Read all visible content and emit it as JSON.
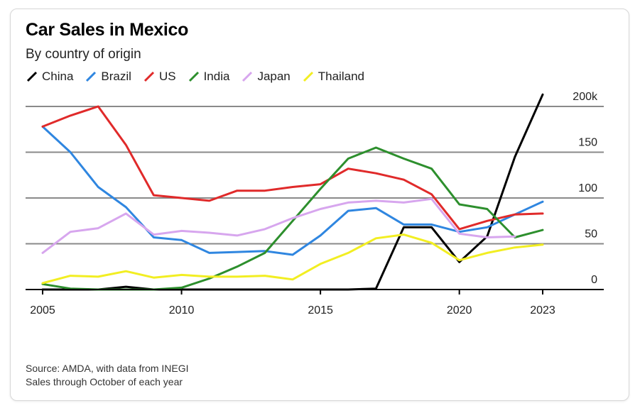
{
  "title": "Car Sales in Mexico",
  "subtitle": "By country of origin",
  "source_lines": [
    "Source: AMDA, with data from INEGI",
    "Sales through October of each year"
  ],
  "colors": {
    "China": "#000000",
    "Brazil": "#2f86e0",
    "US": "#e02a2a",
    "India": "#2d8f2d",
    "Japan": "#d7a6ee",
    "Thailand": "#f2ee22"
  },
  "chart_data": {
    "type": "line",
    "x": [
      2005,
      2006,
      2007,
      2008,
      2009,
      2010,
      2011,
      2012,
      2013,
      2014,
      2015,
      2016,
      2017,
      2018,
      2019,
      2020,
      2021,
      2022,
      2023
    ],
    "series": [
      {
        "name": "China",
        "values": [
          0,
          0,
          0,
          3,
          0,
          0,
          0,
          0,
          0,
          0,
          0,
          0,
          1,
          68,
          68,
          30,
          58,
          145,
          213
        ]
      },
      {
        "name": "Brazil",
        "values": [
          178,
          150,
          112,
          90,
          57,
          54,
          40,
          41,
          42,
          38,
          59,
          86,
          89,
          71,
          71,
          63,
          68,
          82,
          96
        ]
      },
      {
        "name": "US",
        "values": [
          178,
          190,
          200,
          158,
          103,
          100,
          97,
          108,
          108,
          112,
          115,
          132,
          127,
          120,
          104,
          66,
          75,
          82,
          83
        ]
      },
      {
        "name": "India",
        "values": [
          6,
          1,
          0,
          0,
          0,
          2,
          12,
          25,
          40,
          75,
          110,
          143,
          155,
          143,
          132,
          93,
          88,
          57,
          65
        ]
      },
      {
        "name": "Japan",
        "values": [
          40,
          63,
          67,
          83,
          60,
          64,
          62,
          59,
          66,
          78,
          88,
          95,
          97,
          95,
          99,
          61,
          57,
          58,
          null
        ]
      },
      {
        "name": "Thailand",
        "values": [
          7,
          15,
          14,
          20,
          13,
          16,
          14,
          14,
          15,
          11,
          28,
          40,
          56,
          60,
          51,
          32,
          40,
          46,
          49
        ]
      }
    ],
    "y_tick_labels": [
      "200k",
      "150",
      "100",
      "50",
      "0"
    ],
    "y_ticks": [
      200,
      150,
      100,
      50,
      0
    ],
    "x_tick_labels": [
      "2005",
      "2010",
      "2015",
      "2020",
      "2023"
    ],
    "x_ticks": [
      2005,
      2010,
      2015,
      2020,
      2023
    ],
    "ylim": [
      0,
      200
    ],
    "xlim": [
      2005,
      2023
    ],
    "grid": true,
    "legend_position": "top-left"
  }
}
